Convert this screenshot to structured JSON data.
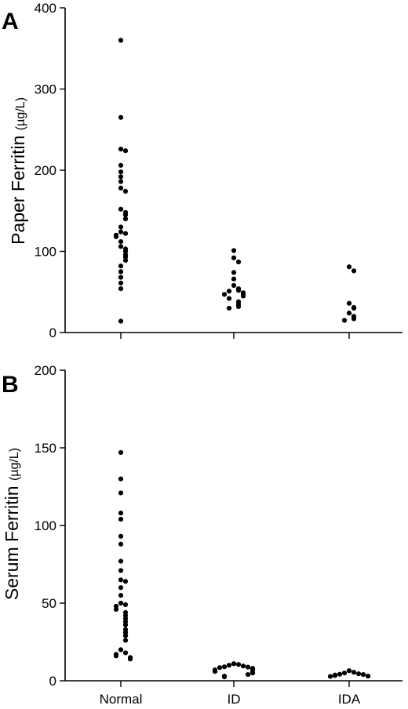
{
  "chart_data": [
    {
      "type": "scatter",
      "panel_label": "A",
      "ylabel": "Paper Ferritin",
      "ylabel_unit": "(µg/L)",
      "ylim": [
        0,
        400
      ],
      "yticks": [
        "0",
        "100",
        "200",
        "300",
        "400"
      ],
      "categories": [
        "Normal",
        "ID",
        "IDA"
      ],
      "groups": [
        {
          "category": "Normal",
          "values": [
            360,
            265,
            226,
            224,
            206,
            198,
            192,
            186,
            178,
            174,
            152,
            148,
            145,
            140,
            130,
            124,
            122,
            120,
            118,
            112,
            106,
            103,
            100,
            96,
            93,
            89,
            82,
            75,
            68,
            61,
            54,
            14
          ]
        },
        {
          "category": "ID",
          "values": [
            101,
            92,
            87,
            74,
            66,
            58,
            54,
            52,
            51,
            49,
            48,
            47,
            45,
            42,
            38,
            35,
            32,
            30
          ]
        },
        {
          "category": "IDA",
          "values": [
            81,
            76,
            36,
            31,
            30,
            24,
            20,
            17,
            15
          ]
        }
      ]
    },
    {
      "type": "scatter",
      "panel_label": "B",
      "ylabel": "Serum Ferritin",
      "ylabel_unit": "(µg/L)",
      "ylim": [
        0,
        200
      ],
      "yticks": [
        "0",
        "50",
        "100",
        "150",
        "200"
      ],
      "categories": [
        "Normal",
        "ID",
        "IDA"
      ],
      "groups": [
        {
          "category": "Normal",
          "values": [
            147,
            130,
            121,
            108,
            104,
            93,
            88,
            77,
            71,
            65,
            64,
            60,
            55,
            50,
            49,
            48,
            46,
            44,
            42,
            40,
            38,
            36,
            33,
            31,
            29,
            26,
            20,
            18,
            17,
            16,
            15,
            14
          ]
        },
        {
          "category": "ID",
          "values": [
            11,
            10.5,
            10,
            9.5,
            9,
            8.8,
            8.5,
            8,
            7.5,
            7.2,
            7,
            6.5,
            6,
            5.5,
            5,
            4,
            3,
            2.5
          ]
        },
        {
          "category": "IDA",
          "values": [
            6.5,
            5.5,
            5,
            4.5,
            4.2,
            4,
            3.7,
            3.4,
            3,
            2.8
          ]
        }
      ]
    }
  ]
}
